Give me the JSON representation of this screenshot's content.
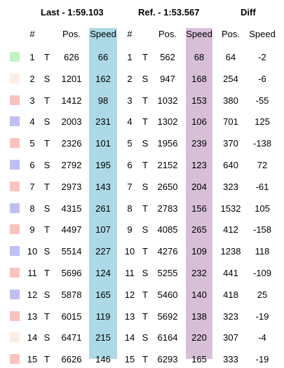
{
  "headers": {
    "last": "Last - 1:59.103",
    "ref": "Ref. - 1:53.567",
    "diff": "Diff"
  },
  "columns": {
    "num_left": "#",
    "pos_left": "Pos.",
    "speed_left": "Speed",
    "num_right": "#",
    "pos_right": "Pos.",
    "speed_right": "Speed",
    "diff_pos": "Pos.",
    "diff_speed": "Speed"
  },
  "colors": {
    "speed_left_bg": "#add8e6",
    "speed_right_bg": "#d8bfd8",
    "green": "#c1f2c1",
    "peach": "#fdeee3",
    "salmon": "#fbc3bd",
    "lavender": "#bfbff6"
  },
  "rows": [
    {
      "swatch": "green",
      "num": "1",
      "type": "T",
      "pos": "626",
      "speed": "66",
      "ref_num": "1",
      "ref_type": "T",
      "ref_pos": "562",
      "ref_speed": "68",
      "diff_pos": "64",
      "diff_speed": "-2"
    },
    {
      "swatch": "peach",
      "num": "2",
      "type": "S",
      "pos": "1201",
      "speed": "162",
      "ref_num": "2",
      "ref_type": "S",
      "ref_pos": "947",
      "ref_speed": "168",
      "diff_pos": "254",
      "diff_speed": "-6"
    },
    {
      "swatch": "salmon",
      "num": "3",
      "type": "T",
      "pos": "1412",
      "speed": "98",
      "ref_num": "3",
      "ref_type": "T",
      "ref_pos": "1032",
      "ref_speed": "153",
      "diff_pos": "380",
      "diff_speed": "-55"
    },
    {
      "swatch": "lavender",
      "num": "4",
      "type": "S",
      "pos": "2003",
      "speed": "231",
      "ref_num": "4",
      "ref_type": "T",
      "ref_pos": "1302",
      "ref_speed": "106",
      "diff_pos": "701",
      "diff_speed": "125"
    },
    {
      "swatch": "salmon",
      "num": "5",
      "type": "T",
      "pos": "2326",
      "speed": "101",
      "ref_num": "5",
      "ref_type": "S",
      "ref_pos": "1956",
      "ref_speed": "239",
      "diff_pos": "370",
      "diff_speed": "-138"
    },
    {
      "swatch": "lavender",
      "num": "6",
      "type": "S",
      "pos": "2792",
      "speed": "195",
      "ref_num": "6",
      "ref_type": "T",
      "ref_pos": "2152",
      "ref_speed": "123",
      "diff_pos": "640",
      "diff_speed": "72"
    },
    {
      "swatch": "salmon",
      "num": "7",
      "type": "T",
      "pos": "2973",
      "speed": "143",
      "ref_num": "7",
      "ref_type": "S",
      "ref_pos": "2650",
      "ref_speed": "204",
      "diff_pos": "323",
      "diff_speed": "-61"
    },
    {
      "swatch": "lavender",
      "num": "8",
      "type": "S",
      "pos": "4315",
      "speed": "261",
      "ref_num": "8",
      "ref_type": "T",
      "ref_pos": "2783",
      "ref_speed": "156",
      "diff_pos": "1532",
      "diff_speed": "105"
    },
    {
      "swatch": "salmon",
      "num": "9",
      "type": "T",
      "pos": "4497",
      "speed": "107",
      "ref_num": "9",
      "ref_type": "S",
      "ref_pos": "4085",
      "ref_speed": "265",
      "diff_pos": "412",
      "diff_speed": "-158"
    },
    {
      "swatch": "lavender",
      "num": "10",
      "type": "S",
      "pos": "5514",
      "speed": "227",
      "ref_num": "10",
      "ref_type": "T",
      "ref_pos": "4276",
      "ref_speed": "109",
      "diff_pos": "1238",
      "diff_speed": "118"
    },
    {
      "swatch": "salmon",
      "num": "11",
      "type": "T",
      "pos": "5696",
      "speed": "124",
      "ref_num": "11",
      "ref_type": "S",
      "ref_pos": "5255",
      "ref_speed": "232",
      "diff_pos": "441",
      "diff_speed": "-109"
    },
    {
      "swatch": "lavender",
      "num": "12",
      "type": "S",
      "pos": "5878",
      "speed": "165",
      "ref_num": "12",
      "ref_type": "T",
      "ref_pos": "5460",
      "ref_speed": "140",
      "diff_pos": "418",
      "diff_speed": "25"
    },
    {
      "swatch": "salmon",
      "num": "13",
      "type": "T",
      "pos": "6015",
      "speed": "119",
      "ref_num": "13",
      "ref_type": "T",
      "ref_pos": "5692",
      "ref_speed": "138",
      "diff_pos": "323",
      "diff_speed": "-19"
    },
    {
      "swatch": "peach",
      "num": "14",
      "type": "S",
      "pos": "6471",
      "speed": "215",
      "ref_num": "14",
      "ref_type": "S",
      "ref_pos": "6164",
      "ref_speed": "220",
      "diff_pos": "307",
      "diff_speed": "-4"
    },
    {
      "swatch": "salmon",
      "num": "15",
      "type": "T",
      "pos": "6626",
      "speed": "146",
      "ref_num": "15",
      "ref_type": "T",
      "ref_pos": "6293",
      "ref_speed": "165",
      "diff_pos": "333",
      "diff_speed": "-19"
    }
  ]
}
